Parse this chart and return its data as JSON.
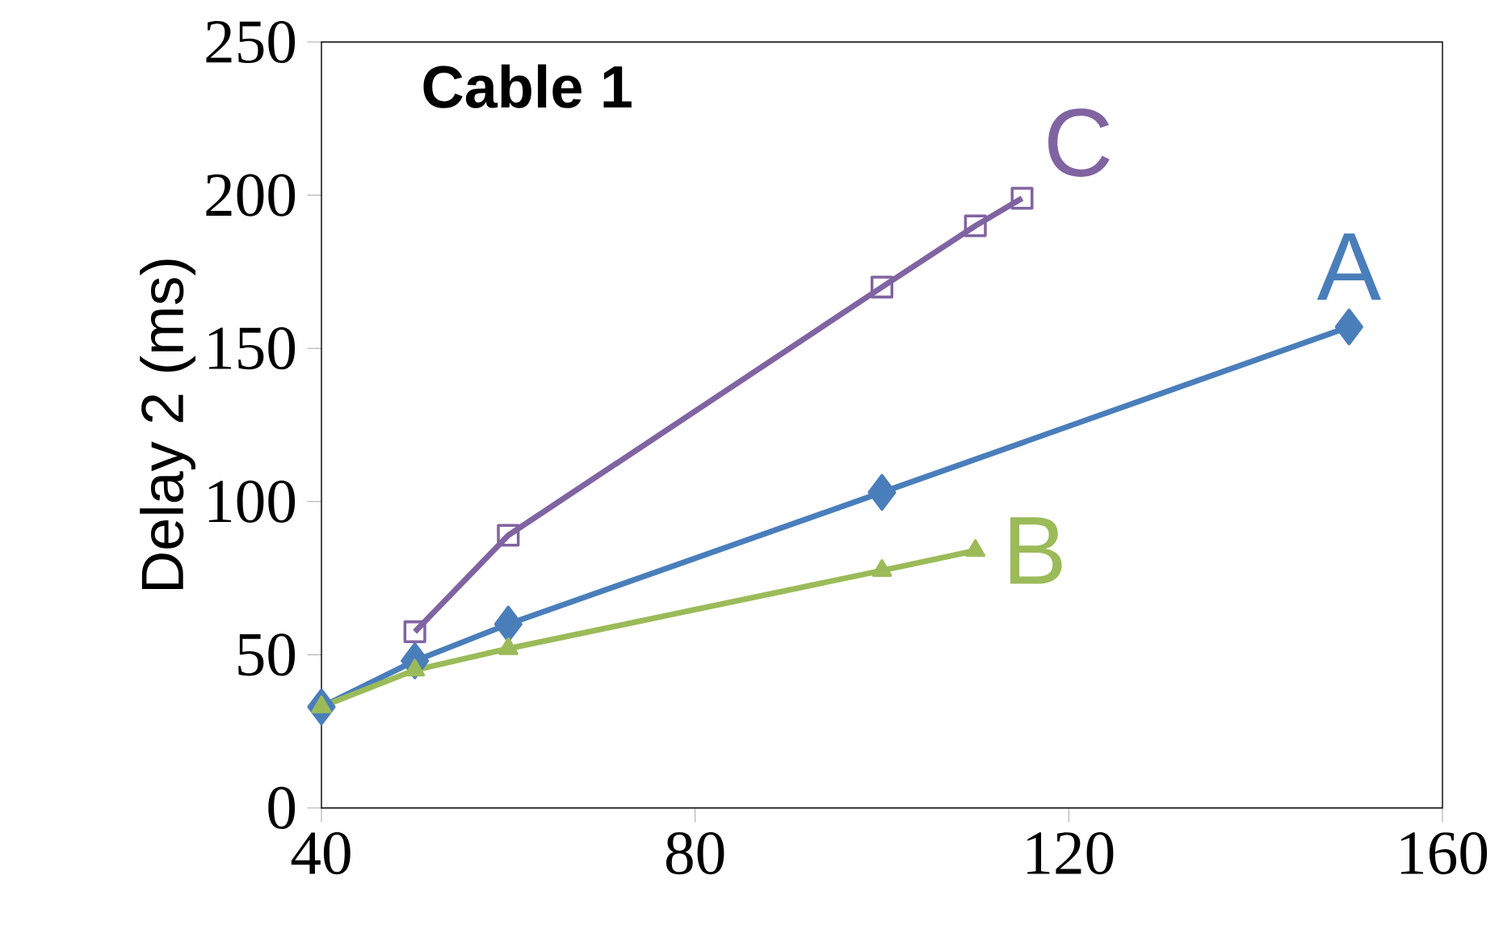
{
  "chart_data": {
    "type": "line",
    "title": "Cable 1",
    "ylabel": "Delay 2 (ms)",
    "xlim": [
      40,
      160
    ],
    "xticks": [
      40,
      80,
      120,
      160
    ],
    "ylim": [
      0,
      250
    ],
    "yticks": [
      0,
      50,
      100,
      150,
      200,
      250
    ],
    "grid": false,
    "legend": false,
    "series": [
      {
        "name": "A",
        "color": "#4a7ebb",
        "marker": "diamond",
        "x": [
          40,
          50,
          60,
          100,
          150
        ],
        "values": [
          33,
          48,
          60,
          103,
          157
        ]
      },
      {
        "name": "B",
        "color": "#9bbb59",
        "marker": "triangle",
        "x": [
          40,
          50,
          60,
          100,
          110
        ],
        "values": [
          33,
          45,
          52,
          77.5,
          84
        ]
      },
      {
        "name": "C",
        "color": "#8064a2",
        "marker": "square",
        "x": [
          50,
          60,
          100,
          110,
          115
        ],
        "values": [
          57.5,
          89,
          170,
          190,
          199
        ]
      }
    ]
  }
}
